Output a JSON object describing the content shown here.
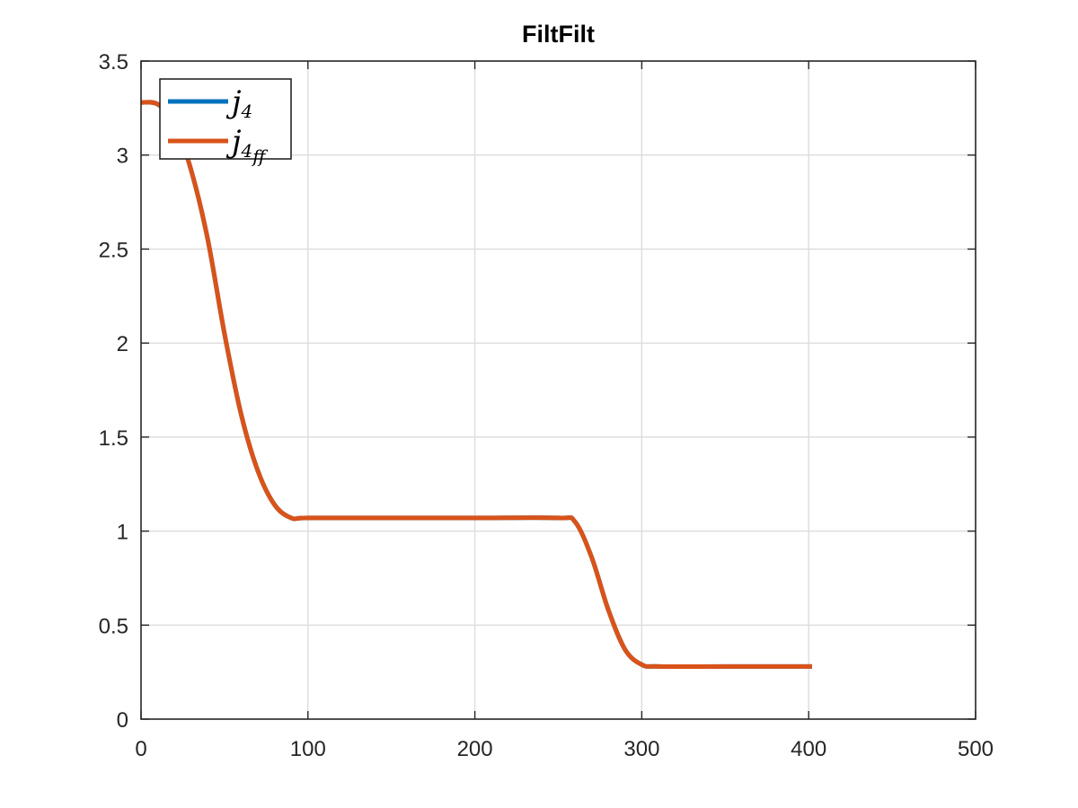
{
  "chart_data": {
    "type": "line",
    "title": "FiltFilt",
    "xlabel": "",
    "ylabel": "",
    "xlim": [
      0,
      500
    ],
    "ylim": [
      0,
      3.5
    ],
    "xticks": [
      "0",
      "100",
      "200",
      "300",
      "400",
      "500"
    ],
    "yticks": [
      "0",
      "0.5",
      "1",
      "1.5",
      "2",
      "2.5",
      "3",
      "3.5"
    ],
    "grid": true,
    "legend_position": "top-left",
    "series": [
      {
        "name": "j4",
        "legend_base": "j",
        "legend_sub": "4",
        "color": "#0072BD",
        "x": [
          0,
          10,
          20,
          30,
          40,
          50,
          60,
          70,
          80,
          90,
          100,
          150,
          200,
          250,
          260,
          270,
          280,
          290,
          300,
          310,
          350,
          402
        ],
        "y": [
          3.28,
          3.27,
          3.17,
          2.92,
          2.55,
          2.05,
          1.62,
          1.32,
          1.14,
          1.07,
          1.07,
          1.07,
          1.07,
          1.07,
          1.05,
          0.86,
          0.58,
          0.37,
          0.29,
          0.28,
          0.28,
          0.28
        ]
      },
      {
        "name": "j4ff",
        "legend_base": "j",
        "legend_sub": "4",
        "legend_subsub": "ff",
        "color": "#D95319",
        "x": [
          0,
          10,
          20,
          30,
          40,
          50,
          60,
          70,
          80,
          90,
          100,
          150,
          200,
          250,
          260,
          270,
          280,
          290,
          300,
          310,
          350,
          402
        ],
        "y": [
          3.28,
          3.27,
          3.17,
          2.92,
          2.55,
          2.05,
          1.62,
          1.32,
          1.14,
          1.07,
          1.07,
          1.07,
          1.07,
          1.07,
          1.05,
          0.86,
          0.58,
          0.37,
          0.29,
          0.28,
          0.28,
          0.28
        ]
      }
    ]
  }
}
